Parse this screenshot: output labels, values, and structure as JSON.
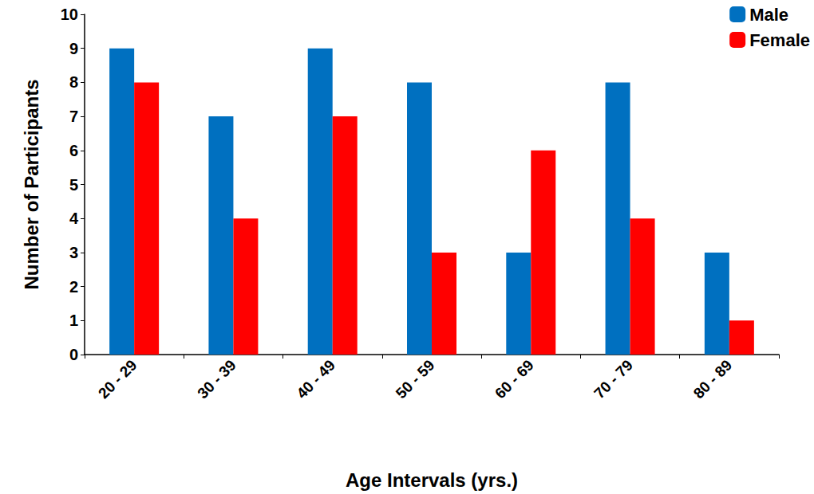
{
  "chart_data": {
    "type": "bar",
    "categories": [
      "20 - 29",
      "30 - 39",
      "40 - 49",
      "50 - 59",
      "60 - 69",
      "70 - 79",
      "80 - 89"
    ],
    "series": [
      {
        "name": "Male",
        "color": "#0070C0",
        "values": [
          9,
          7,
          9,
          8,
          3,
          8,
          3
        ]
      },
      {
        "name": "Female",
        "color": "#FF0000",
        "values": [
          8,
          4,
          7,
          3,
          6,
          4,
          1
        ]
      }
    ],
    "x_label": "Age Intervals (yrs.)",
    "y_label": "Number of Participants",
    "ylim": [
      0,
      10
    ],
    "yticks": [
      0,
      1,
      2,
      3,
      4,
      5,
      6,
      7,
      8,
      9,
      10
    ],
    "grid": false,
    "legend": "upper right"
  }
}
